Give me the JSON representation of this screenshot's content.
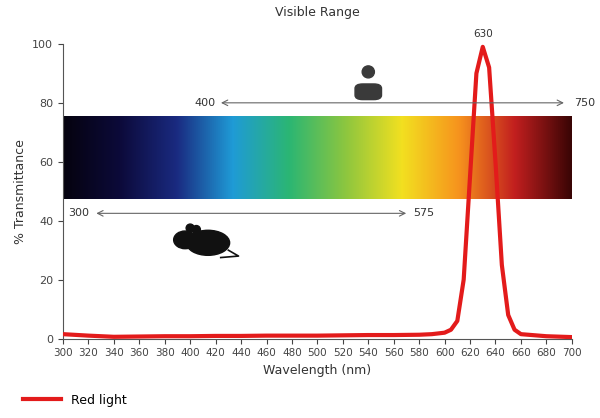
{
  "chart_data": {
    "type": "line",
    "title": "Visible Range",
    "x_label": "Wavelength (nm)",
    "y_label": "% Transmittance",
    "x": [
      300,
      320,
      340,
      360,
      380,
      400,
      420,
      440,
      460,
      480,
      500,
      520,
      540,
      560,
      580,
      590,
      600,
      605,
      610,
      615,
      620,
      625,
      630,
      635,
      640,
      645,
      650,
      655,
      660,
      680,
      700
    ],
    "series": [
      {
        "name": "Red light",
        "color": "#e31b1b",
        "values": [
          1.5,
          1.0,
          0.6,
          0.7,
          0.8,
          0.8,
          0.9,
          0.9,
          1.0,
          1.0,
          1.0,
          1.1,
          1.2,
          1.2,
          1.3,
          1.5,
          2.0,
          3.0,
          6.0,
          20.0,
          55.0,
          90.0,
          99.0,
          92.0,
          60.0,
          25.0,
          8.0,
          3.0,
          1.5,
          0.8,
          0.5
        ]
      }
    ],
    "peak": 630,
    "ranges": [
      {
        "start": 400,
        "end": 750
      },
      {
        "start": 300,
        "end": 575
      }
    ],
    "xlim": [
      300,
      700
    ],
    "xticks": [
      300,
      320,
      340,
      360,
      380,
      400,
      420,
      440,
      460,
      480,
      500,
      520,
      540,
      560,
      580,
      600,
      620,
      640,
      660,
      680,
      700
    ],
    "ylim": [
      0,
      100
    ],
    "yticks": [
      0,
      20,
      40,
      60,
      80,
      100
    ],
    "grid": false,
    "legend": "lower left"
  }
}
